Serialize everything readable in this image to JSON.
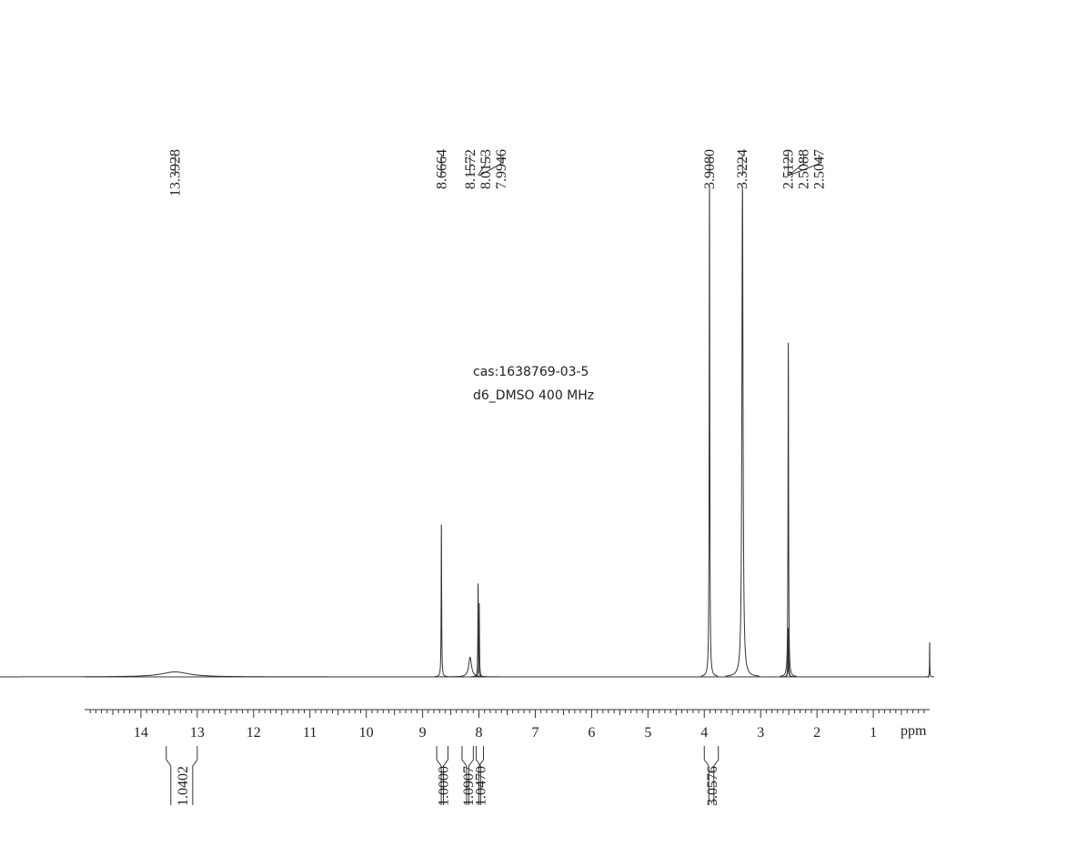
{
  "chart_data": {
    "type": "nmr",
    "annotations": [
      "cas:1638769-03-5",
      "d6_DMSO  400 MHz"
    ],
    "xlabel": "ppm",
    "xlim": [
      15,
      0
    ],
    "xticks": [
      1,
      2,
      3,
      4,
      5,
      6,
      7,
      8,
      9,
      10,
      11,
      12,
      13,
      14
    ],
    "ylim": [
      0,
      100
    ],
    "color": "#333333",
    "peaks": {
      "x": [
        13.3928,
        8.6664,
        8.1572,
        8.0153,
        7.9946,
        3.908,
        3.3224,
        2.5129,
        2.5088,
        2.5047,
        0
      ],
      "x_labels": [
        "13.3928",
        "8.6664",
        "8.1572",
        "8.0153",
        "7.9946",
        "3.9080",
        "3.3224",
        "2.5129",
        "2.5088",
        "2.5047",
        null
      ],
      "values": [
        1,
        31,
        4,
        19,
        15,
        100,
        100,
        10,
        68,
        10,
        7
      ],
      "linewidths": [
        0.3,
        0.005,
        0.03,
        0.005,
        0.005,
        0.006,
        0.012,
        0.005,
        0.006,
        0.005,
        0.003
      ]
    },
    "integrals": {
      "values": [
        1.0402,
        1.0,
        1.0907,
        1.047,
        3.0576
      ],
      "value_labels": [
        "1.0402",
        "1.0000",
        "1.0907",
        "1.0470",
        "3.0576"
      ],
      "ranges": [
        [
          13.55,
          13.0
        ],
        [
          8.75,
          8.55
        ],
        [
          8.3,
          8.1
        ],
        [
          8.05,
          7.92
        ],
        [
          4.0,
          3.75
        ]
      ]
    }
  }
}
